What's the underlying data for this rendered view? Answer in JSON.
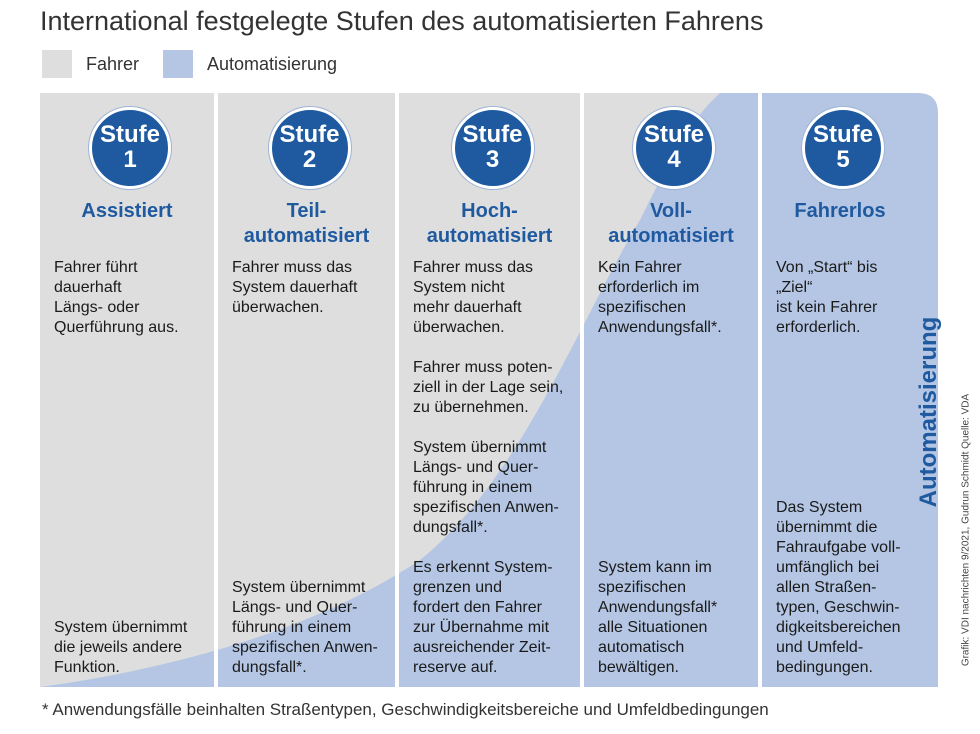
{
  "title": "International festgelegte Stufen des automatisierten Fahrens",
  "legend": {
    "driver_label": "Fahrer",
    "automation_label": "Automatisierung",
    "driver_color": "#dedede",
    "automation_color": "#b4c6e4"
  },
  "levels": [
    {
      "badge_word": "Stufe",
      "badge_number": "1",
      "heading": [
        "Assistiert"
      ],
      "text_top": [
        "Fahrer führt",
        "dauerhaft",
        "Längs- oder",
        "Querführung aus."
      ],
      "text_bottom": [
        "System übernimmt",
        "die jeweils andere",
        "Funktion."
      ]
    },
    {
      "badge_word": "Stufe",
      "badge_number": "2",
      "heading": [
        "Teil-",
        "automatisiert"
      ],
      "text_top": [
        "Fahrer muss das",
        "System dauerhaft",
        "überwachen."
      ],
      "text_bottom": [
        "System übernimmt",
        "Längs- und Quer-",
        "führung in einem",
        "spezifischen Anwen-",
        "dungsfall*."
      ]
    },
    {
      "badge_word": "Stufe",
      "badge_number": "3",
      "heading": [
        "Hoch-",
        "automatisiert"
      ],
      "text_top": [
        "Fahrer muss das",
        "System nicht",
        "mehr dauerhaft",
        "überwachen."
      ],
      "text_mid1": [
        "Fahrer muss poten-",
        "ziell in der Lage sein,",
        "zu übernehmen."
      ],
      "text_mid2": [
        "System übernimmt",
        "Längs- und Quer-",
        "führung in einem",
        "spezifischen Anwen-",
        "dungsfall*."
      ],
      "text_bottom": [
        "Es erkennt System-",
        "grenzen und",
        "fordert den Fahrer",
        "zur Übernahme mit",
        "ausreichender Zeit-",
        "reserve auf."
      ]
    },
    {
      "badge_word": "Stufe",
      "badge_number": "4",
      "heading": [
        "Voll-",
        "automatisiert"
      ],
      "text_top": [
        "Kein Fahrer",
        "erforderlich im",
        "spezifischen",
        "Anwendungsfall*."
      ],
      "text_bottom": [
        "System kann im",
        "spezifischen",
        "Anwendungsfall*",
        "alle Situationen",
        "automatisch",
        "bewältigen."
      ]
    },
    {
      "badge_word": "Stufe",
      "badge_number": "5",
      "heading": [
        "Fahrerlos"
      ],
      "text_top": [
        "Von „Start“ bis",
        "„Ziel“",
        "ist kein Fahrer",
        "erforderlich."
      ],
      "text_bottom": [
        "Das System",
        "übernimmt die",
        "Fahraufgabe voll-",
        "umfänglich bei",
        "allen Straßen-",
        "typen, Geschwin-",
        "digkeitsbereichen",
        "und Umfeld-",
        "bedingungen."
      ]
    }
  ],
  "vertical_label": "Automatisierung",
  "credit": "Grafik: VDI nachrichten 9/2021, Gudrun Schmidt     Quelle: VDA",
  "footnote": "* Anwendungsfälle beinhalten Straßentypen, Geschwindigkeitsbereiche und Umfeldbedingungen"
}
